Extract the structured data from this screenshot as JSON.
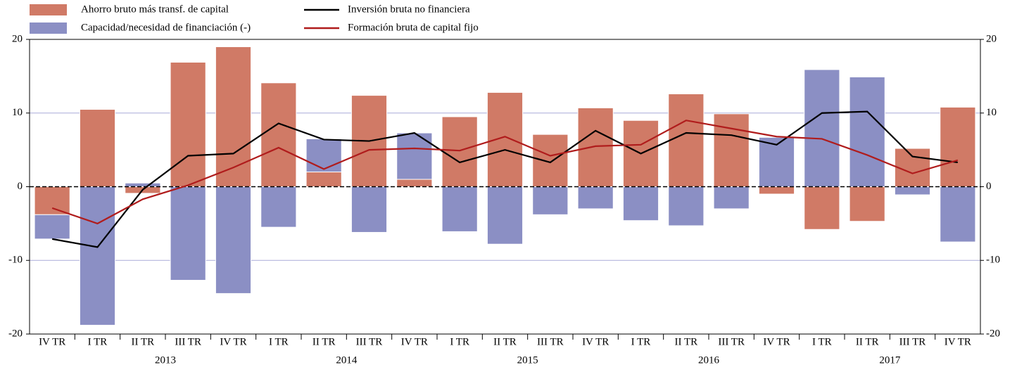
{
  "chart_data": {
    "type": "bar_line",
    "categories": [
      "IV TR",
      "I TR",
      "II TR",
      "III TR",
      "IV TR",
      "I TR",
      "II TR",
      "III TR",
      "IV TR",
      "I TR",
      "II TR",
      "III TR",
      "IV TR",
      "I TR",
      "II TR",
      "III TR",
      "IV TR",
      "I TR",
      "II TR",
      "III TR",
      "IV TR"
    ],
    "groups": [
      {
        "label": "2013",
        "start": 1,
        "end": 4
      },
      {
        "label": "2014",
        "start": 5,
        "end": 8
      },
      {
        "label": "2015",
        "start": 9,
        "end": 12
      },
      {
        "label": "2016",
        "start": 13,
        "end": 16
      },
      {
        "label": "2017",
        "start": 17,
        "end": 20
      }
    ],
    "series": [
      {
        "name": "Ahorro bruto más transf. de capital",
        "kind": "bar",
        "color": "#d07a66",
        "values": [
          -3.8,
          10.5,
          -0.9,
          16.9,
          19.0,
          14.1,
          2.0,
          12.4,
          1.0,
          9.5,
          12.8,
          7.1,
          10.7,
          9.0,
          12.6,
          9.9,
          -1.0,
          -5.8,
          -4.7,
          5.2,
          10.8
        ]
      },
      {
        "name": "Capacidad/necesidad de financiación (-)",
        "kind": "bar",
        "color": "#8b8fc4",
        "values": [
          -3.3,
          -18.8,
          0.5,
          -12.7,
          -14.5,
          -5.5,
          4.5,
          -6.2,
          6.3,
          -6.1,
          -7.8,
          -3.8,
          -3.0,
          -4.6,
          -5.3,
          -3.0,
          6.7,
          15.9,
          14.9,
          -1.1,
          -7.5
        ]
      },
      {
        "name": "Inversión bruta no financiera",
        "kind": "line",
        "color": "#000000",
        "values": [
          -7.1,
          -8.2,
          -0.4,
          4.2,
          4.5,
          8.6,
          6.4,
          6.2,
          7.3,
          3.3,
          5.0,
          3.3,
          7.6,
          4.5,
          7.3,
          7.0,
          5.7,
          10.0,
          10.2,
          4.1,
          3.3
        ]
      },
      {
        "name": "Formación bruta de capital fijo",
        "kind": "line",
        "color": "#b01c1c",
        "values": [
          -2.9,
          -5.0,
          -1.7,
          0.2,
          2.6,
          5.3,
          2.4,
          5.0,
          5.2,
          4.9,
          6.8,
          4.2,
          5.5,
          5.7,
          9.0,
          7.9,
          6.8,
          6.5,
          4.3,
          1.8,
          3.6
        ]
      }
    ],
    "stacked": true,
    "ylim": [
      -20,
      20
    ],
    "yticks": [
      -20,
      -10,
      0,
      10,
      20
    ],
    "y2lim": [
      -20,
      20
    ],
    "y2ticks": [
      -20,
      -10,
      0,
      10,
      20
    ],
    "grid": true
  }
}
